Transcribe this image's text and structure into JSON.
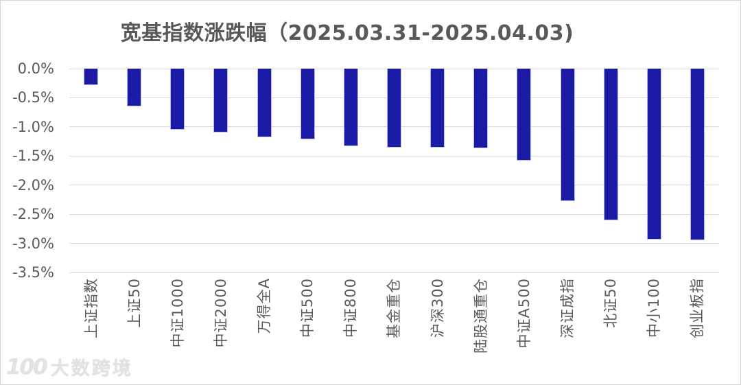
{
  "title": "宽基指数涨跌幅（2025.03.31-2025.04.03)",
  "watermark": {
    "logo": "100",
    "text": "大数跨境"
  },
  "chart_data": {
    "type": "bar",
    "title": "宽基指数涨跌幅（2025.03.31-2025.04.03)",
    "categories": [
      "上证指数",
      "上证50",
      "中证1000",
      "中证2000",
      "万得全A",
      "中证500",
      "中证800",
      "基金重仓",
      "沪深300",
      "陆股通重仓",
      "中证A500",
      "深证成指",
      "北证50",
      "中小100",
      "创业板指"
    ],
    "values": [
      -0.28,
      -0.65,
      -1.05,
      -1.1,
      -1.18,
      -1.21,
      -1.33,
      -1.35,
      -1.36,
      -1.37,
      -1.58,
      -2.27,
      -2.61,
      -2.93,
      -2.95
    ],
    "value_unit": "%",
    "xlabel": "",
    "ylabel": "",
    "ylim": [
      -3.5,
      0
    ],
    "ytick_step": 0.5,
    "ytick_labels": [
      "0.0%",
      "-0.5%",
      "-1.0%",
      "-1.5%",
      "-2.0%",
      "-2.5%",
      "-3.0%",
      "-3.5%"
    ],
    "grid": true,
    "legend": "none",
    "bar_color": "#1a1aa5",
    "gridline_color": "#d9d9d9",
    "text_color": "#595959"
  }
}
